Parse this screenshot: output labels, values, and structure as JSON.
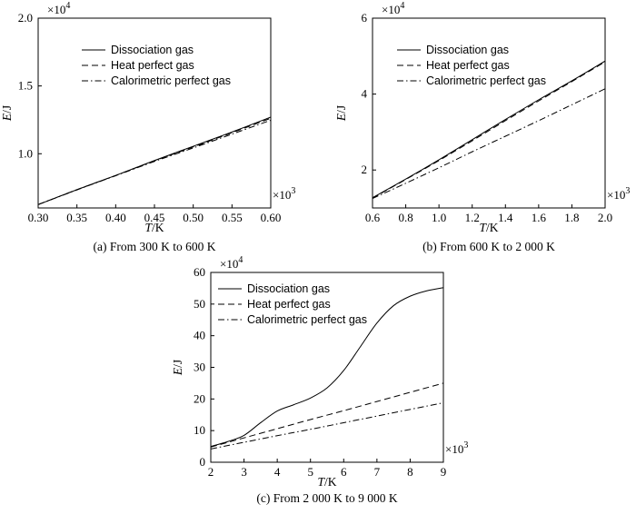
{
  "chart_data": [
    {
      "type": "line",
      "caption": "(a) From 300 K to 600 K",
      "xlabel_var": "T",
      "xlabel_unit": "/K",
      "ylabel_var": "E",
      "ylabel_unit": "/J",
      "x_multiplier": {
        "base": "×10",
        "exp": "3"
      },
      "y_multiplier": {
        "base": "×10",
        "exp": "4"
      },
      "xlim": [
        0.3,
        0.6
      ],
      "ylim": [
        0.6,
        2.0
      ],
      "xticks": [
        0.3,
        0.35,
        0.4,
        0.45,
        0.5,
        0.55,
        0.6
      ],
      "xtick_labels": [
        "0.30",
        "0.35",
        "0.40",
        "0.45",
        "0.50",
        "0.55",
        "0.60"
      ],
      "yticks": [
        1.0,
        1.5,
        2.0
      ],
      "ytick_labels": [
        "1.0",
        "1.5",
        "2.0"
      ],
      "legend_position": "top-center",
      "series": [
        {
          "name": "Dissociation gas",
          "style": "solid",
          "x": [
            0.3,
            0.35,
            0.4,
            0.45,
            0.5,
            0.55,
            0.6
          ],
          "y": [
            0.625,
            0.735,
            0.84,
            0.95,
            1.055,
            1.16,
            1.27
          ]
        },
        {
          "name": "Heat perfect gas",
          "style": "dashed",
          "x": [
            0.3,
            0.35,
            0.4,
            0.45,
            0.5,
            0.55,
            0.6
          ],
          "y": [
            0.625,
            0.735,
            0.84,
            0.948,
            1.05,
            1.155,
            1.262
          ]
        },
        {
          "name": "Calorimetric perfect gas",
          "style": "dashdot",
          "x": [
            0.3,
            0.35,
            0.4,
            0.45,
            0.5,
            0.55,
            0.6
          ],
          "y": [
            0.625,
            0.733,
            0.838,
            0.943,
            1.043,
            1.145,
            1.247
          ]
        }
      ]
    },
    {
      "type": "line",
      "caption": "(b) From 600 K to 2 000 K",
      "xlabel_var": "T",
      "xlabel_unit": "/K",
      "ylabel_var": "E",
      "ylabel_unit": "/J",
      "x_multiplier": {
        "base": "×10",
        "exp": "3"
      },
      "y_multiplier": {
        "base": "×10",
        "exp": "4"
      },
      "xlim": [
        0.6,
        2.0
      ],
      "ylim": [
        1.0,
        6.0
      ],
      "xticks": [
        0.6,
        0.8,
        1.0,
        1.2,
        1.4,
        1.6,
        1.8,
        2.0
      ],
      "xtick_labels": [
        "0.6",
        "0.8",
        "1.0",
        "1.2",
        "1.4",
        "1.6",
        "1.8",
        "2.0"
      ],
      "yticks": [
        2,
        4,
        6
      ],
      "ytick_labels": [
        "2",
        "4",
        "6"
      ],
      "legend_position": "top-center",
      "series": [
        {
          "name": "Dissociation gas",
          "style": "solid",
          "x": [
            0.6,
            0.8,
            1.0,
            1.2,
            1.4,
            1.6,
            1.8,
            2.0
          ],
          "y": [
            1.27,
            1.76,
            2.27,
            2.8,
            3.33,
            3.85,
            4.35,
            4.87
          ]
        },
        {
          "name": "Heat perfect gas",
          "style": "dashed",
          "x": [
            0.6,
            0.8,
            1.0,
            1.2,
            1.4,
            1.6,
            1.8,
            2.0
          ],
          "y": [
            1.26,
            1.75,
            2.25,
            2.77,
            3.3,
            3.82,
            4.33,
            4.85
          ]
        },
        {
          "name": "Calorimetric perfect gas",
          "style": "dashdot",
          "x": [
            0.6,
            0.8,
            1.0,
            1.2,
            1.4,
            1.6,
            1.8,
            2.0
          ],
          "y": [
            1.25,
            1.65,
            2.06,
            2.48,
            2.89,
            3.3,
            3.72,
            4.14
          ]
        }
      ]
    },
    {
      "type": "line",
      "caption": "(c) From 2 000 K to 9 000 K",
      "xlabel_var": "T",
      "xlabel_unit": "/K",
      "ylabel_var": "E",
      "ylabel_unit": "/J",
      "x_multiplier": {
        "base": "×10",
        "exp": "3"
      },
      "y_multiplier": {
        "base": "×10",
        "exp": "4"
      },
      "xlim": [
        2,
        9
      ],
      "ylim": [
        0,
        60
      ],
      "xticks": [
        2,
        3,
        4,
        5,
        6,
        7,
        8,
        9
      ],
      "xtick_labels": [
        "2",
        "3",
        "4",
        "5",
        "6",
        "7",
        "8",
        "9"
      ],
      "yticks": [
        0,
        10,
        20,
        30,
        40,
        50,
        60
      ],
      "ytick_labels": [
        "0",
        "10",
        "20",
        "30",
        "40",
        "50",
        "60"
      ],
      "legend_position": "top-center",
      "series": [
        {
          "name": "Dissociation gas",
          "style": "solid",
          "x": [
            2.0,
            2.5,
            3.0,
            3.5,
            4.0,
            4.5,
            5.0,
            5.5,
            6.0,
            6.5,
            7.0,
            7.5,
            8.0,
            8.5,
            9.0
          ],
          "y": [
            5.0,
            6.5,
            8.5,
            12.5,
            16.2,
            18.2,
            20.3,
            23.5,
            29.0,
            36.5,
            44.0,
            49.5,
            52.5,
            54.2,
            55.2
          ]
        },
        {
          "name": "Heat perfect gas",
          "style": "dashed",
          "x": [
            2,
            3,
            4,
            5,
            6,
            7,
            8,
            9
          ],
          "y": [
            4.8,
            7.7,
            10.6,
            13.5,
            16.3,
            19.2,
            22.1,
            25.0
          ]
        },
        {
          "name": "Calorimetric perfect gas",
          "style": "dashdot",
          "x": [
            2,
            3,
            4,
            5,
            6,
            7,
            8,
            9
          ],
          "y": [
            4.2,
            6.3,
            8.4,
            10.4,
            12.5,
            14.6,
            16.7,
            18.8
          ]
        }
      ]
    }
  ]
}
